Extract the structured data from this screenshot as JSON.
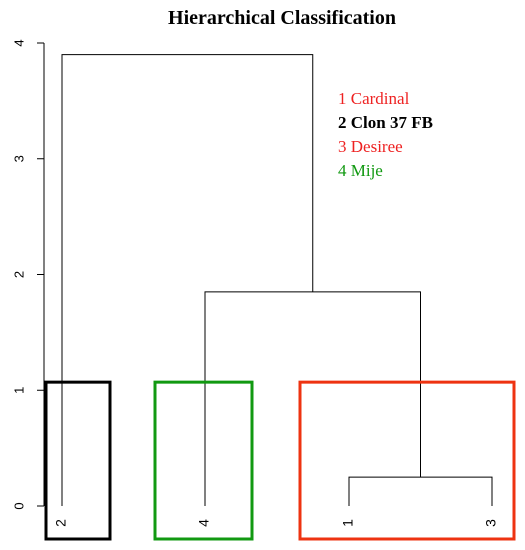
{
  "chart_data": {
    "type": "dendrogram",
    "title": "Hierarchical Classification",
    "xlabel": "",
    "ylabel": "",
    "ylim": [
      0,
      4
    ],
    "y_ticks": [
      0,
      1,
      2,
      3,
      4
    ],
    "grid": false,
    "leaves": [
      {
        "label": "2",
        "order": 1
      },
      {
        "label": "4",
        "order": 2
      },
      {
        "label": "1",
        "order": 3
      },
      {
        "label": "3",
        "order": 4
      }
    ],
    "merges": [
      {
        "left": "1",
        "right": "3",
        "height": 0.25
      },
      {
        "left": "4",
        "right": "1+3",
        "height": 1.85
      },
      {
        "left": "2",
        "right": "4+1+3",
        "height": 3.9
      }
    ],
    "clusters": [
      {
        "members": [
          "2"
        ],
        "color": "#000000",
        "top": 1.07
      },
      {
        "members": [
          "4"
        ],
        "color": "#119911",
        "top": 1.07
      },
      {
        "members": [
          "1",
          "3"
        ],
        "color": "#ee3311",
        "top": 1.07
      }
    ],
    "legend": {
      "position": "top-right",
      "entries": [
        {
          "text": "1 Cardinal",
          "color": "#ee2222",
          "bold": false
        },
        {
          "text": "2 Clon 37 FB",
          "color": "#000000",
          "bold": true
        },
        {
          "text": "3 Desiree",
          "color": "#ee2222",
          "bold": false
        },
        {
          "text": "4 Mije",
          "color": "#119911",
          "bold": false
        }
      ]
    }
  }
}
